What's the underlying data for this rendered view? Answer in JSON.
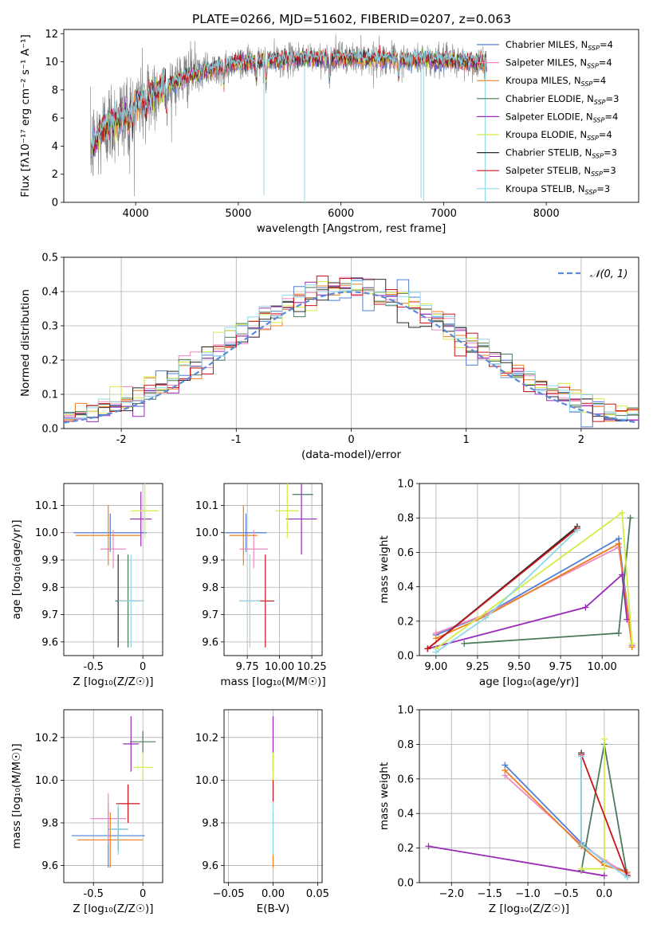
{
  "figure_title": "PLATE=0266, MJD=51602, FIBERID=0207, z=0.063",
  "colors": {
    "Chabrier MILES": "#4f7fd6",
    "Salpeter MILES": "#f088c0",
    "Kroupa MILES": "#ee7f22",
    "Chabrier ELODIE": "#4a7a5a",
    "Salpeter ELODIE": "#9b2ab8",
    "Kroupa ELODIE": "#d3ec45",
    "Chabrier STELIB": "#2b2b2b",
    "Salpeter STELIB": "#c8141a",
    "Kroupa STELIB": "#8ed8e8",
    "data": "#808080",
    "normal": "#5b8bd8"
  },
  "chart_data": [
    {
      "id": "spectrum",
      "type": "line",
      "xlabel": "wavelength [Angstrom, rest frame]",
      "ylabel": "Flux [fλ10⁻¹⁷ erg cm⁻² s⁻¹ A⁻¹]",
      "xlim": [
        3300,
        8900
      ],
      "ylim": [
        0,
        12.3
      ],
      "xticks": [
        4000,
        5000,
        6000,
        7000,
        8000
      ],
      "yticks": [
        0,
        2,
        4,
        6,
        8,
        10,
        12
      ],
      "grid": false,
      "legend_position": "top-right",
      "legend": [
        {
          "name": "Chabrier MILES",
          "text": "Chabrier MILES, N",
          "n": "=4"
        },
        {
          "name": "Salpeter MILES",
          "text": "Salpeter MILES, N",
          "n": "=4"
        },
        {
          "name": "Kroupa MILES",
          "text": "Kroupa MILES, N",
          "n": "=4"
        },
        {
          "name": "Chabrier ELODIE",
          "text": "Chabrier ELODIE, N",
          "n": "=3"
        },
        {
          "name": "Salpeter ELODIE",
          "text": "Salpeter ELODIE, N",
          "n": "=4"
        },
        {
          "name": "Kroupa ELODIE",
          "text": "Kroupa ELODIE, N",
          "n": "=4"
        },
        {
          "name": "Chabrier STELIB",
          "text": "Chabrier STELIB, N",
          "n": "=3"
        },
        {
          "name": "Salpeter STELIB",
          "text": "Salpeter STELIB, N",
          "n": "=3"
        },
        {
          "name": "Kroupa STELIB",
          "text": "Kroupa STELIB, N",
          "n": "=3"
        }
      ],
      "data_range": [
        3560,
        7420
      ],
      "continuum": [
        [
          3560,
          3.8
        ],
        [
          3700,
          5.4
        ],
        [
          3900,
          6.3
        ],
        [
          4000,
          7.0
        ],
        [
          4200,
          7.9
        ],
        [
          4500,
          9.0
        ],
        [
          4800,
          9.6
        ],
        [
          5000,
          9.9
        ],
        [
          5500,
          10.2
        ],
        [
          6000,
          10.3
        ],
        [
          6500,
          10.2
        ],
        [
          7000,
          10.1
        ],
        [
          7400,
          9.9
        ]
      ],
      "absorption_lines": [
        3934,
        3969,
        4102,
        4304,
        4861,
        5175,
        5270,
        5890,
        6563
      ],
      "artifacts": [
        [
          5250,
          0.5
        ],
        [
          5645,
          0
        ],
        [
          6780,
          0.3
        ],
        [
          6805,
          0
        ],
        [
          7405,
          0
        ]
      ]
    },
    {
      "id": "residuals",
      "type": "step",
      "xlabel": "(data-model)/error",
      "ylabel": "Normed distribution",
      "xlim": [
        -2.5,
        2.5
      ],
      "ylim": [
        0,
        0.5
      ],
      "xticks": [
        -2,
        -1,
        0,
        1,
        2
      ],
      "yticks": [
        0.0,
        0.1,
        0.2,
        0.3,
        0.4,
        0.5
      ],
      "bin_width": 0.1,
      "grid": true,
      "legend_position": "top-right",
      "normal_curve_label": "𝒩(0, 1)"
    },
    {
      "id": "age_vs_Z",
      "type": "errorbar",
      "xlabel": "Z [log₁₀(Z/Z☉)]",
      "ylabel": "age  [log₁₀(age/yr)]",
      "xlim": [
        -0.8,
        0.2
      ],
      "ylim": [
        9.55,
        10.18
      ],
      "xticks": [
        -0.5,
        0.0
      ],
      "yticks": [
        9.6,
        9.7,
        9.8,
        9.9,
        10.0,
        10.1
      ],
      "grid": true,
      "points": [
        {
          "series": "Chabrier MILES",
          "x": -0.33,
          "xerr": 0.37,
          "y": 10.0,
          "yerr": 0.07
        },
        {
          "series": "Salpeter MILES",
          "x": -0.3,
          "xerr": 0.13,
          "y": 9.94,
          "yerr": 0.07
        },
        {
          "series": "Kroupa MILES",
          "x": -0.35,
          "xerr": 0.33,
          "y": 9.99,
          "yerr": 0.11
        },
        {
          "series": "Chabrier ELODIE",
          "x": -0.15,
          "xerr": 0.13,
          "y": 9.75,
          "yerr": 0.17
        },
        {
          "series": "Salpeter ELODIE",
          "x": -0.02,
          "xerr": 0.11,
          "y": 10.05,
          "yerr": 0.1
        },
        {
          "series": "Kroupa ELODIE",
          "x": 0.02,
          "xerr": 0.14,
          "y": 10.08,
          "yerr": 0.1
        },
        {
          "series": "Chabrier STELIB",
          "x": -0.25,
          "xerr": 0.0,
          "y": 9.75,
          "yerr": 0.17
        },
        {
          "series": "Salpeter STELIB",
          "x": -0.12,
          "xerr": 0.13,
          "y": 9.75,
          "yerr": 0.0
        },
        {
          "series": "Kroupa STELIB",
          "x": -0.12,
          "xerr": 0.13,
          "y": 9.75,
          "yerr": 0.17
        }
      ]
    },
    {
      "id": "age_vs_mass",
      "type": "errorbar",
      "xlabel": "mass [log₁₀(M/M☉)]",
      "ylabel": "",
      "xlim": [
        9.57,
        10.33
      ],
      "ylim": [
        9.55,
        10.18
      ],
      "xticks": [
        9.75,
        10.0,
        10.25
      ],
      "xticklabels": [
        "9.75",
        "10.00",
        "10.25"
      ],
      "yticks": [
        9.6,
        9.7,
        9.8,
        9.9,
        10.0,
        10.1
      ],
      "grid": true,
      "points": [
        {
          "series": "Chabrier MILES",
          "x": 9.74,
          "xerr": 0.16,
          "y": 10.0,
          "yerr": 0.07
        },
        {
          "series": "Salpeter MILES",
          "x": 9.8,
          "xerr": 0.11,
          "y": 9.94,
          "yerr": 0.07
        },
        {
          "series": "Kroupa MILES",
          "x": 9.72,
          "xerr": 0.11,
          "y": 9.99,
          "yerr": 0.11
        },
        {
          "series": "Chabrier ELODIE",
          "x": 10.18,
          "xerr": 0.08,
          "y": 10.14,
          "yerr": 0.0
        },
        {
          "series": "Salpeter ELODIE",
          "x": 10.17,
          "xerr": 0.12,
          "y": 10.05,
          "yerr": 0.13
        },
        {
          "series": "Kroupa ELODIE",
          "x": 10.06,
          "xerr": 0.09,
          "y": 10.08,
          "yerr": 0.1
        },
        {
          "series": "Chabrier STELIB",
          "x": 9.77,
          "xerr": 0.08,
          "y": 9.75,
          "yerr": 0.0
        },
        {
          "series": "Salpeter STELIB",
          "x": 9.89,
          "xerr": 0.07,
          "y": 9.75,
          "yerr": 0.17
        },
        {
          "series": "Kroupa STELIB",
          "x": 9.77,
          "xerr": 0.08,
          "y": 9.75,
          "yerr": 0.17
        }
      ]
    },
    {
      "id": "weight_vs_age",
      "type": "line",
      "xlabel": "age  [log₁₀(age/yr)]",
      "ylabel": "mass weight",
      "xlim": [
        8.9,
        10.22
      ],
      "ylim": [
        0,
        1
      ],
      "xticks": [
        9.0,
        9.25,
        9.5,
        9.75,
        10.0
      ],
      "xticklabels": [
        "9.00",
        "9.25",
        "9.50",
        "9.75",
        "10.00"
      ],
      "yticks": [
        0.0,
        0.2,
        0.4,
        0.6,
        0.8,
        1.0
      ],
      "grid": true,
      "series": [
        {
          "name": "Chabrier MILES",
          "x": [
            9.0,
            9.3,
            10.1,
            10.18
          ],
          "y": [
            0.12,
            0.24,
            0.68,
            0.06
          ]
        },
        {
          "name": "Salpeter MILES",
          "x": [
            9.0,
            9.3,
            10.1,
            10.18
          ],
          "y": [
            0.13,
            0.24,
            0.63,
            0.06
          ]
        },
        {
          "name": "Kroupa MILES",
          "x": [
            9.0,
            9.3,
            10.1,
            10.18
          ],
          "y": [
            0.1,
            0.23,
            0.65,
            0.05
          ]
        },
        {
          "name": "Chabrier ELODIE",
          "x": [
            9.17,
            10.1,
            10.17
          ],
          "y": [
            0.07,
            0.13,
            0.8
          ]
        },
        {
          "name": "Salpeter ELODIE",
          "x": [
            8.95,
            9.9,
            10.12,
            10.15
          ],
          "y": [
            0.04,
            0.28,
            0.47,
            0.21
          ]
        },
        {
          "name": "Kroupa ELODIE",
          "x": [
            9.0,
            10.12,
            10.18
          ],
          "y": [
            0.04,
            0.83,
            0.07
          ]
        },
        {
          "name": "Chabrier STELIB",
          "x": [
            8.95,
            9.85
          ],
          "y": [
            0.04,
            0.75
          ]
        },
        {
          "name": "Salpeter STELIB",
          "x": [
            8.95,
            9.85
          ],
          "y": [
            0.04,
            0.74
          ]
        },
        {
          "name": "Kroupa STELIB",
          "x": [
            9.0,
            9.3,
            9.85
          ],
          "y": [
            0.02,
            0.22,
            0.73
          ]
        }
      ]
    },
    {
      "id": "mass_vs_Z",
      "type": "errorbar",
      "xlabel": "Z [log₁₀(Z/Z☉)]",
      "ylabel": "mass [log₁₀(M/M☉)]",
      "xlim": [
        -0.8,
        0.2
      ],
      "ylim": [
        9.52,
        10.33
      ],
      "xticks": [
        -0.5,
        0.0
      ],
      "yticks": [
        9.6,
        9.8,
        10.0,
        10.2
      ],
      "grid": true,
      "points": [
        {
          "series": "Chabrier MILES",
          "x": -0.35,
          "xerr": 0.37,
          "y": 9.74,
          "yerr": 0.15
        },
        {
          "series": "Salpeter MILES",
          "x": -0.35,
          "xerr": 0.18,
          "y": 9.82,
          "yerr": 0.12
        },
        {
          "series": "Kroupa MILES",
          "x": -0.33,
          "xerr": 0.33,
          "y": 9.72,
          "yerr": 0.13
        },
        {
          "series": "Chabrier ELODIE",
          "x": 0.0,
          "xerr": 0.13,
          "y": 10.18,
          "yerr": 0.05
        },
        {
          "series": "Salpeter ELODIE",
          "x": -0.12,
          "xerr": 0.08,
          "y": 10.17,
          "yerr": 0.13
        },
        {
          "series": "Kroupa ELODIE",
          "x": 0.0,
          "xerr": 0.1,
          "y": 10.06,
          "yerr": 0.07
        },
        {
          "series": "Chabrier STELIB",
          "x": -0.25,
          "xerr": 0.1,
          "y": 9.77,
          "yerr": 0.1
        },
        {
          "series": "Salpeter STELIB",
          "x": -0.15,
          "xerr": 0.12,
          "y": 9.89,
          "yerr": 0.09
        },
        {
          "series": "Kroupa STELIB",
          "x": -0.25,
          "xerr": 0.1,
          "y": 9.77,
          "yerr": 0.12
        }
      ]
    },
    {
      "id": "mass_vs_EBV",
      "type": "errorbar",
      "xlabel": "E(B-V)",
      "ylabel": "",
      "xlim": [
        -0.055,
        0.055
      ],
      "ylim": [
        9.52,
        10.33
      ],
      "xticks": [
        -0.05,
        0.0,
        0.05
      ],
      "xticklabels": [
        "−0.05",
        "0.00",
        "0.05"
      ],
      "yticks": [
        9.6,
        9.8,
        10.0,
        10.2
      ],
      "grid": true,
      "points": [
        {
          "series": "Kroupa MILES",
          "x": 0.0,
          "xerr": 0.0,
          "y": 9.72,
          "yerr": 0.13
        },
        {
          "series": "Salpeter ELODIE",
          "x": 0.0,
          "xerr": 0.0,
          "y": 10.17,
          "yerr": 0.13
        },
        {
          "series": "Kroupa ELODIE",
          "x": 0.0,
          "xerr": 0.0,
          "y": 10.06,
          "yerr": 0.07
        },
        {
          "series": "Salpeter STELIB",
          "x": 0.0,
          "xerr": 0.0,
          "y": 9.95,
          "yerr": 0.05
        },
        {
          "series": "Kroupa STELIB",
          "x": 0.0,
          "xerr": 0.0,
          "y": 9.77,
          "yerr": 0.12
        }
      ]
    },
    {
      "id": "weight_vs_Z",
      "type": "line",
      "xlabel": "Z [log₁₀(Z/Z☉)]",
      "ylabel": "mass weight",
      "xlim": [
        -2.42,
        0.45
      ],
      "ylim": [
        0,
        1
      ],
      "xticks": [
        -2.0,
        -1.5,
        -1.0,
        -0.5,
        0.0
      ],
      "xticklabels": [
        "−2.0",
        "−1.5",
        "−1.0",
        "−0.5",
        "0.0"
      ],
      "yticks": [
        0.0,
        0.2,
        0.4,
        0.6,
        0.8,
        1.0
      ],
      "grid": true,
      "series": [
        {
          "name": "Chabrier MILES",
          "x": [
            -1.3,
            -0.3,
            0.0,
            0.3
          ],
          "y": [
            0.68,
            0.23,
            0.12,
            0.06
          ]
        },
        {
          "name": "Salpeter MILES",
          "x": [
            -1.3,
            -0.3,
            0.0,
            0.3
          ],
          "y": [
            0.62,
            0.22,
            0.13,
            0.05
          ]
        },
        {
          "name": "Kroupa MILES",
          "x": [
            -1.3,
            -0.3,
            0.0,
            0.3
          ],
          "y": [
            0.65,
            0.21,
            0.1,
            0.06
          ]
        },
        {
          "name": "Chabrier ELODIE",
          "x": [
            -0.3,
            0.0,
            0.3
          ],
          "y": [
            0.07,
            0.8,
            0.04
          ]
        },
        {
          "name": "Salpeter ELODIE",
          "x": [
            -2.3,
            0.0
          ],
          "y": [
            0.21,
            0.04
          ]
        },
        {
          "name": "Kroupa ELODIE",
          "x": [
            -0.3,
            0.0,
            0.0
          ],
          "y": [
            0.08,
            0.08,
            0.83
          ]
        },
        {
          "name": "Chabrier STELIB",
          "x": [
            -0.3,
            -0.3
          ],
          "y": [
            0.75,
            0.22
          ]
        },
        {
          "name": "Salpeter STELIB",
          "x": [
            -0.3,
            0.3
          ],
          "y": [
            0.74,
            0.04
          ]
        },
        {
          "name": "Kroupa STELIB",
          "x": [
            -0.3,
            -0.3,
            0.3
          ],
          "y": [
            0.73,
            0.22,
            0.03
          ]
        }
      ]
    }
  ]
}
